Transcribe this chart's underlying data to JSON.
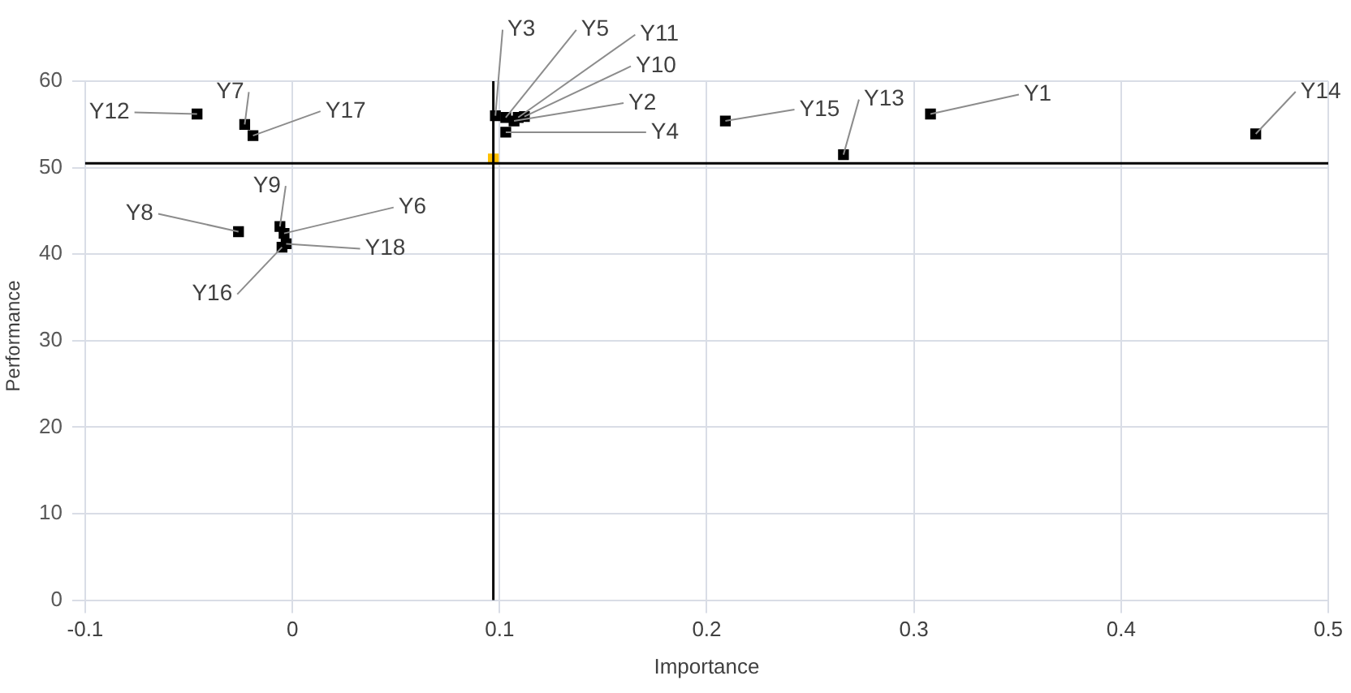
{
  "chart_data": {
    "type": "scatter",
    "xlabel": "Importance",
    "ylabel": "Performance",
    "xlim": [
      -0.1,
      0.5
    ],
    "xticks": [
      -0.1,
      0,
      0.1,
      0.2,
      0.3,
      0.4,
      0.5
    ],
    "ylim": [
      0,
      60
    ],
    "yticks": [
      0,
      10,
      20,
      30,
      40,
      50,
      60
    ],
    "grid": true,
    "legend": false,
    "marker": "square",
    "series": [
      {
        "color": "#000000",
        "x": [
          -0.046,
          -0.023,
          -0.019,
          -0.026,
          -0.006,
          -0.004,
          -0.003,
          -0.005,
          0.098,
          0.103,
          0.109,
          0.112,
          0.107,
          0.103,
          0.209,
          0.266,
          0.308,
          0.465
        ],
        "values": [
          56.2,
          55,
          53.7,
          42.6,
          43.2,
          42.4,
          41.2,
          40.8,
          56,
          55.8,
          55.8,
          55.9,
          55.4,
          54.1,
          55.4,
          51.5,
          56.2,
          53.9
        ]
      },
      {
        "color": "#ffc000",
        "x": [
          0.097
        ],
        "values": [
          51
        ]
      }
    ],
    "ref_lines": [
      {
        "axis": "x",
        "value": 0.097,
        "color": "#000000"
      },
      {
        "axis": "y",
        "value": 50.5,
        "color": "#000000"
      }
    ],
    "annotations": [
      {
        "text": "Y12",
        "x": -0.046,
        "y": 56.2
      },
      {
        "text": "Y7",
        "x": -0.023,
        "y": 55
      },
      {
        "text": "Y17",
        "x": -0.019,
        "y": 53.7
      },
      {
        "text": "Y8",
        "x": -0.026,
        "y": 42.6
      },
      {
        "text": "Y9",
        "x": -0.006,
        "y": 43.2
      },
      {
        "text": "Y6",
        "x": -0.004,
        "y": 42.4
      },
      {
        "text": "Y18",
        "x": -0.003,
        "y": 41.2
      },
      {
        "text": "Y16",
        "x": -0.005,
        "y": 40.8
      },
      {
        "text": "Y3",
        "x": 0.098,
        "y": 56
      },
      {
        "text": "Y5",
        "x": 0.103,
        "y": 55.8
      },
      {
        "text": "Y11",
        "x": 0.109,
        "y": 55.8
      },
      {
        "text": "Y10",
        "x": 0.112,
        "y": 55.9
      },
      {
        "text": "Y2",
        "x": 0.107,
        "y": 55.4
      },
      {
        "text": "Y4",
        "x": 0.103,
        "y": 54.1
      },
      {
        "text": "Y15",
        "x": 0.209,
        "y": 55.4
      },
      {
        "text": "Y13",
        "x": 0.266,
        "y": 51.5
      },
      {
        "text": "Y1",
        "x": 0.308,
        "y": 56.2
      },
      {
        "text": "Y14",
        "x": 0.465,
        "y": 53.9
      }
    ]
  }
}
